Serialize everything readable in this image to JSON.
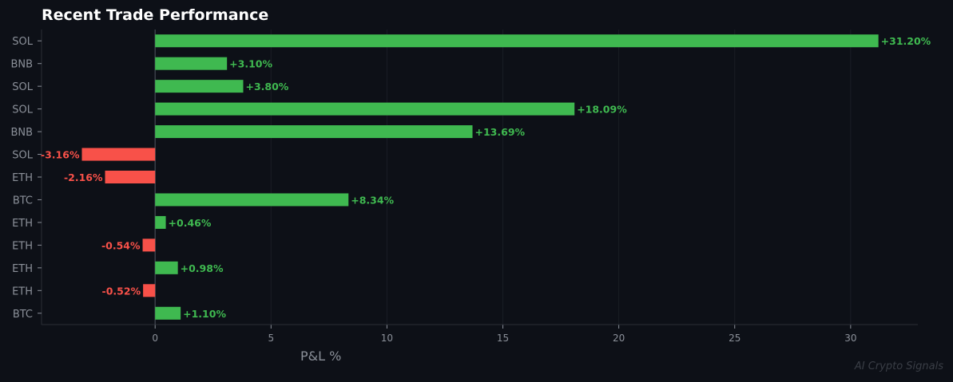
{
  "chart_data": {
    "type": "bar",
    "orientation": "horizontal",
    "title": "Recent Trade Performance",
    "xlabel": "P&L %",
    "ylabel": "",
    "categories": [
      "SOL",
      "BNB",
      "SOL",
      "SOL",
      "BNB",
      "SOL",
      "ETH",
      "BTC",
      "ETH",
      "ETH",
      "ETH",
      "ETH",
      "BTC"
    ],
    "values": [
      31.2,
      3.1,
      3.8,
      18.09,
      13.69,
      -3.16,
      -2.16,
      8.34,
      0.46,
      -0.54,
      0.98,
      -0.52,
      1.1
    ],
    "data_labels": [
      "+31.20%",
      "+3.10%",
      "+3.80%",
      "+18.09%",
      "+13.69%",
      "-3.16%",
      "-2.16%",
      "+8.34%",
      "+0.46%",
      "-0.54%",
      "+0.98%",
      "-0.52%",
      "+1.10%"
    ],
    "xticks": [
      0,
      5,
      10,
      15,
      20,
      25,
      30
    ],
    "xlim": [
      -4.9,
      32.9
    ],
    "grid": "vertical",
    "colors": {
      "positive": "#3fb950",
      "negative": "#f85149",
      "background": "#0d1017",
      "text": "#8b9099"
    }
  },
  "watermark": "AI Crypto Signals"
}
